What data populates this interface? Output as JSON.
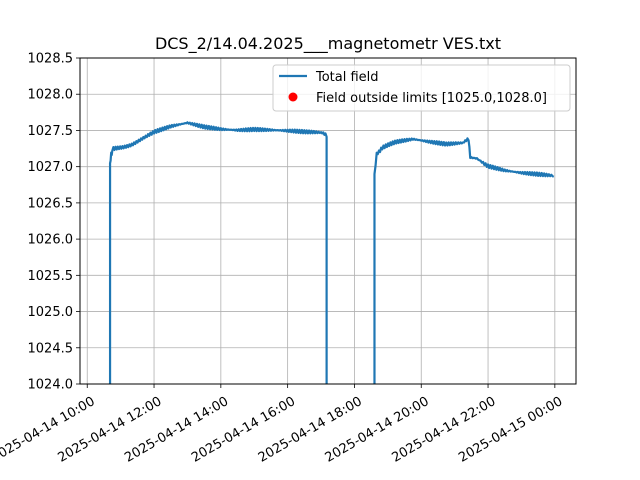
{
  "chart_data": {
    "type": "line",
    "title": "DCS_2/14.04.2025___magnetometr VES.txt",
    "xlabel": "",
    "ylabel": "",
    "x_axis_type": "datetime",
    "xlim": [
      "2025-04-14 09:47",
      "2025-04-15 00:38"
    ],
    "ylim": [
      1024.0,
      1028.5
    ],
    "x_ticks": [
      "2025-04-14 10:00",
      "2025-04-14 12:00",
      "2025-04-14 14:00",
      "2025-04-14 16:00",
      "2025-04-14 18:00",
      "2025-04-14 20:00",
      "2025-04-14 22:00",
      "2025-04-15 00:00"
    ],
    "y_ticks": [
      1024.0,
      1024.5,
      1025.0,
      1025.5,
      1026.0,
      1026.5,
      1027.0,
      1027.5,
      1028.0,
      1028.5
    ],
    "grid": true,
    "legend_position": "top-right",
    "legend": [
      "Total field",
      "Field outside limits [1025.0,1028.0]"
    ],
    "series": [
      {
        "name": "Total field",
        "kind": "line",
        "color": "#1f77b4",
        "x": [
          "2025-04-14 10:41",
          "2025-04-14 10:41",
          "2025-04-14 10:43",
          "2025-04-14 10:45",
          "2025-04-14 10:55",
          "2025-04-14 11:20",
          "2025-04-14 11:45",
          "2025-04-14 12:00",
          "2025-04-14 12:30",
          "2025-04-14 13:00",
          "2025-04-14 13:30",
          "2025-04-14 14:00",
          "2025-04-14 14:30",
          "2025-04-14 15:00",
          "2025-04-14 15:30",
          "2025-04-14 16:00",
          "2025-04-14 16:30",
          "2025-04-14 17:00",
          "2025-04-14 17:10",
          "2025-04-14 17:10"
        ],
        "y": [
          1024.0,
          1027.05,
          1027.15,
          1027.22,
          1027.27,
          1027.32,
          1027.4,
          1027.47,
          1027.56,
          1027.62,
          1027.57,
          1027.54,
          1027.52,
          1027.52,
          1027.5,
          1027.48,
          1027.46,
          1027.45,
          1027.43,
          1024.0
        ]
      },
      {
        "name": "Total field",
        "kind": "line",
        "color": "#1f77b4",
        "x": [
          "2025-04-14 18:36",
          "2025-04-14 18:36",
          "2025-04-14 18:40",
          "2025-04-14 18:50",
          "2025-04-14 19:15",
          "2025-04-14 19:45",
          "2025-04-14 20:15",
          "2025-04-14 20:45",
          "2025-04-14 21:15",
          "2025-04-14 21:25",
          "2025-04-14 21:28",
          "2025-04-14 21:40",
          "2025-04-14 22:00",
          "2025-04-14 22:30",
          "2025-04-14 23:00",
          "2025-04-14 23:30",
          "2025-04-14 23:58"
        ],
        "y": [
          1024.0,
          1026.9,
          1027.2,
          1027.26,
          1027.32,
          1027.36,
          1027.33,
          1027.31,
          1027.34,
          1027.36,
          1027.15,
          1027.09,
          1027.03,
          1026.97,
          1026.93,
          1026.9,
          1026.86
        ]
      },
      {
        "name": "Field outside limits [1025.0,1028.0]",
        "kind": "scatter",
        "color": "#ff0000",
        "x": [],
        "y": []
      }
    ]
  }
}
